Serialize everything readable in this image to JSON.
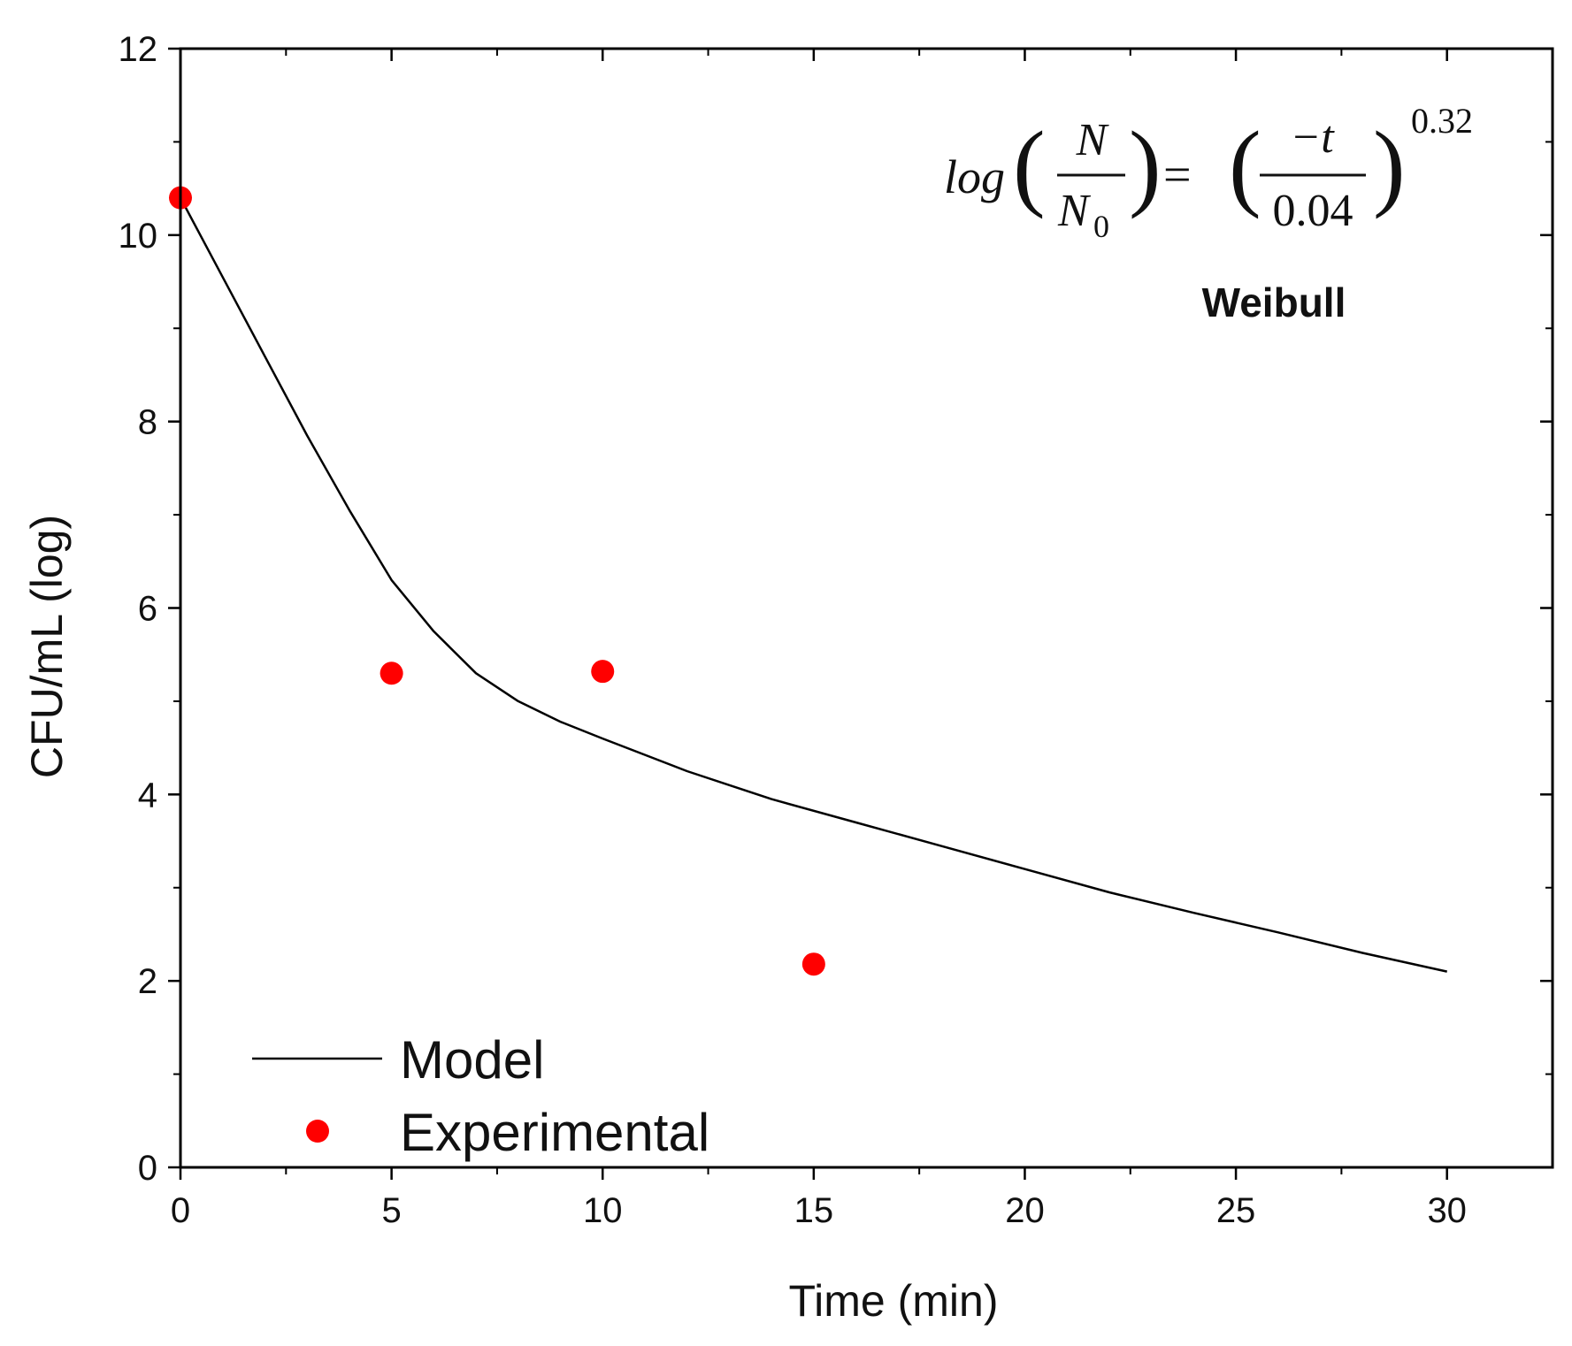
{
  "chart_data": {
    "type": "line",
    "title": "",
    "subtitle": "Weibull",
    "equation": {
      "lhs_func": "log",
      "lhs_num": "N",
      "lhs_den": "N",
      "lhs_den_sub": "0",
      "equals": "=",
      "rhs_num": "−t",
      "rhs_den": "0.04",
      "exponent": "0.32"
    },
    "xlabel": "Time (min)",
    "ylabel": "CFU/mL (log)",
    "xlim": [
      0,
      32.5
    ],
    "ylim": [
      0,
      12
    ],
    "xticks": [
      0,
      5,
      10,
      15,
      20,
      25,
      30
    ],
    "yticks": [
      0,
      2,
      4,
      6,
      8,
      10,
      12
    ],
    "x_minor_step": 2.5,
    "y_minor_step": 1,
    "grid": false,
    "legend_position": "bottom-left",
    "series": [
      {
        "name": "Model",
        "kind": "line",
        "color": "#000000",
        "x": [
          0,
          1,
          2,
          3,
          4,
          5,
          6,
          7,
          8,
          9,
          10,
          12,
          14,
          16,
          18,
          20,
          22,
          24,
          26,
          28,
          30
        ],
        "y": [
          10.4,
          9.55,
          8.7,
          7.85,
          7.05,
          6.3,
          5.75,
          5.3,
          5.0,
          4.78,
          4.6,
          4.25,
          3.95,
          3.7,
          3.45,
          3.2,
          2.95,
          2.73,
          2.52,
          2.3,
          2.1
        ]
      },
      {
        "name": "Experimental",
        "kind": "scatter",
        "color": "#ff0000",
        "x": [
          0,
          5,
          10,
          15
        ],
        "y": [
          10.4,
          5.3,
          5.32,
          2.18
        ]
      }
    ]
  }
}
